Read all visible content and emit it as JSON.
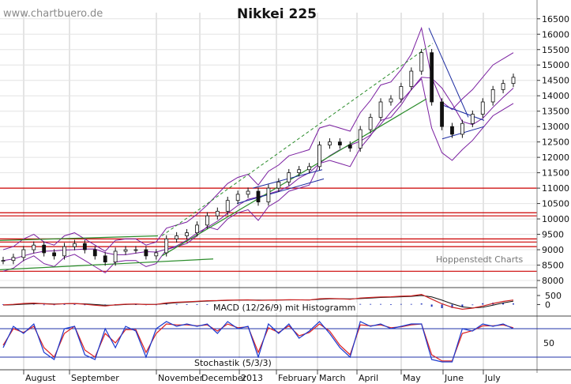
{
  "watermark": "www.chartbuero.de",
  "title": "Nikkei 225",
  "provider": "Hoppenstedt Charts",
  "chart_data": [
    {
      "type": "line",
      "name": "price",
      "title": "Nikkei 225",
      "x": [
        "2012-07-30",
        "2012-08-06",
        "2012-08-13",
        "2012-08-20",
        "2012-08-27",
        "2012-09-03",
        "2012-09-10",
        "2012-09-17",
        "2012-09-24",
        "2012-10-01",
        "2012-10-08",
        "2012-10-15",
        "2012-10-22",
        "2012-10-29",
        "2012-11-05",
        "2012-11-12",
        "2012-11-19",
        "2012-11-26",
        "2012-12-03",
        "2012-12-10",
        "2012-12-17",
        "2012-12-24",
        "2013-01-07",
        "2013-01-14",
        "2013-01-21",
        "2013-01-28",
        "2013-02-04",
        "2013-02-11",
        "2013-02-18",
        "2013-02-25",
        "2013-03-04",
        "2013-03-11",
        "2013-03-18",
        "2013-03-25",
        "2013-04-01",
        "2013-04-08",
        "2013-04-15",
        "2013-04-22",
        "2013-04-29",
        "2013-05-06",
        "2013-05-13",
        "2013-05-20",
        "2013-05-27",
        "2013-06-03",
        "2013-06-10",
        "2013-06-17",
        "2013-06-24",
        "2013-07-01",
        "2013-07-08",
        "2013-07-15",
        "2013-07-19"
      ],
      "close": [
        8650,
        8750,
        9000,
        9150,
        8900,
        8800,
        9100,
        9200,
        9000,
        8800,
        8600,
        8950,
        9000,
        9000,
        8800,
        8900,
        9350,
        9450,
        9550,
        9800,
        10100,
        10250,
        10600,
        10800,
        10900,
        10550,
        11000,
        11200,
        11500,
        11600,
        11700,
        12400,
        12500,
        12400,
        12300,
        12900,
        13300,
        13800,
        13900,
        14300,
        14800,
        15400,
        13800,
        13000,
        12750,
        13100,
        13400,
        13800,
        14200,
        14400,
        14600
      ],
      "resistance_support_levels": [
        8300,
        9100,
        9250,
        9350,
        10100,
        10200,
        11000
      ],
      "ylim": [
        8000,
        16700
      ],
      "ytick_labels": [
        "8000",
        "8500",
        "9000",
        "9500",
        "10000",
        "10500",
        "11000",
        "11500",
        "12000",
        "12500",
        "13000",
        "13500",
        "14000",
        "14500",
        "15000",
        "15500",
        "16000",
        "16500"
      ],
      "xtick_labels": [
        "August",
        "September",
        "November",
        "December",
        "2013",
        "February",
        "March",
        "April",
        "May",
        "June",
        "July"
      ],
      "series_colors": {
        "price": "#111111",
        "bands": "#7a1fa0",
        "levels": "#cc0000",
        "trend": "#2a8c2a",
        "channel": "#1a2aa0"
      }
    },
    {
      "type": "line",
      "name": "macd",
      "label": "MACD (12/26/9) mit Histogramm",
      "ytick_labels": [
        "500",
        "0"
      ],
      "ylim": [
        -550,
        850
      ],
      "macd": [
        -20,
        10,
        60,
        80,
        40,
        10,
        50,
        60,
        20,
        -40,
        -80,
        -10,
        20,
        30,
        0,
        10,
        90,
        130,
        150,
        180,
        210,
        220,
        240,
        250,
        260,
        230,
        240,
        250,
        270,
        260,
        250,
        320,
        340,
        320,
        290,
        360,
        390,
        420,
        430,
        460,
        480,
        560,
        300,
        40,
        -150,
        -260,
        -200,
        -80,
        60,
        170,
        250
      ],
      "signal": [
        -30,
        -10,
        20,
        40,
        50,
        30,
        40,
        50,
        40,
        0,
        -40,
        -30,
        0,
        20,
        10,
        10,
        50,
        100,
        130,
        160,
        190,
        210,
        230,
        240,
        250,
        245,
        242,
        245,
        255,
        258,
        255,
        285,
        310,
        320,
        310,
        330,
        360,
        390,
        410,
        430,
        450,
        500,
        420,
        240,
        40,
        -130,
        -190,
        -150,
        -40,
        90,
        190
      ],
      "series_colors": {
        "macd": "#cc2222",
        "signal": "#111111",
        "histogram": "#2233bb"
      }
    },
    {
      "type": "line",
      "name": "stochastic",
      "label": "Stochastik (5/3/3)",
      "ytick_labels": [
        "50"
      ],
      "ylim": [
        0,
        100
      ],
      "levels": [
        20,
        80
      ],
      "k": [
        40,
        85,
        70,
        90,
        30,
        15,
        80,
        85,
        25,
        15,
        80,
        40,
        85,
        75,
        20,
        80,
        95,
        85,
        90,
        85,
        90,
        70,
        95,
        80,
        85,
        20,
        90,
        70,
        90,
        60,
        75,
        95,
        70,
        40,
        20,
        95,
        85,
        90,
        80,
        85,
        90,
        90,
        15,
        10,
        10,
        80,
        75,
        90,
        85,
        90,
        80
      ],
      "d": [
        45,
        80,
        72,
        85,
        40,
        20,
        70,
        85,
        35,
        20,
        70,
        50,
        78,
        78,
        30,
        70,
        90,
        88,
        88,
        86,
        88,
        75,
        90,
        82,
        84,
        30,
        82,
        72,
        86,
        65,
        72,
        90,
        75,
        45,
        25,
        88,
        86,
        88,
        82,
        84,
        88,
        90,
        25,
        12,
        12,
        70,
        76,
        86,
        86,
        88,
        82
      ],
      "series_colors": {
        "k": "#1a3ad0",
        "d": "#dd2222",
        "levels": "#2233aa"
      }
    }
  ]
}
